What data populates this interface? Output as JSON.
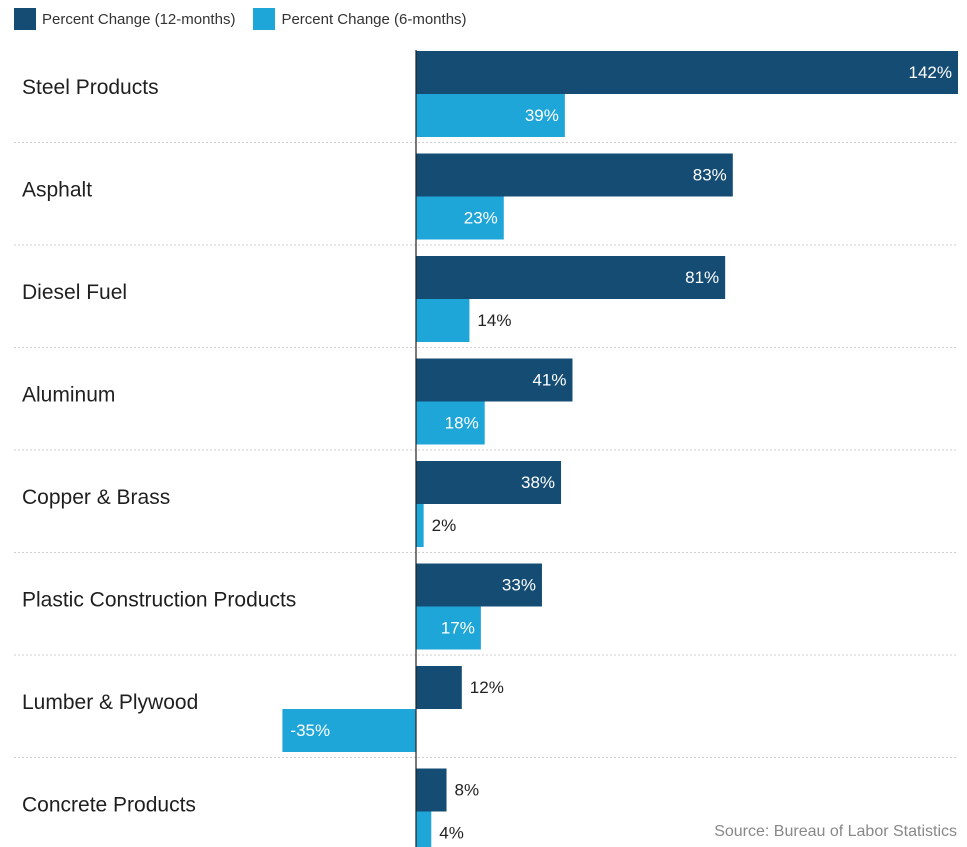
{
  "legend": {
    "series1_label": "Percent Change (12-months)",
    "series2_label": "Percent Change (6-months)"
  },
  "colors": {
    "series1": "#154c74",
    "series2": "#1fa6d8"
  },
  "source": "Source: Bureau of Labor Statistics",
  "chart_data": {
    "type": "bar",
    "orientation": "horizontal",
    "categories": [
      "Steel Products",
      "Asphalt",
      "Diesel Fuel",
      "Aluminum",
      "Copper & Brass",
      "Plastic Construction Products",
      "Lumber & Plywood",
      "Concrete Products"
    ],
    "series": [
      {
        "name": "Percent Change (12-months)",
        "values": [
          142,
          83,
          81,
          41,
          38,
          33,
          12,
          8
        ],
        "labels": [
          "142%",
          "83%",
          "81%",
          "41%",
          "38%",
          "33%",
          "12%",
          "8%"
        ]
      },
      {
        "name": "Percent Change (6-months)",
        "values": [
          39,
          23,
          14,
          18,
          2,
          17,
          -35,
          4
        ],
        "labels": [
          "39%",
          "23%",
          "14%",
          "18%",
          "2%",
          "17%",
          "-35%",
          "4%"
        ]
      }
    ],
    "xlim": [
      -35,
      142
    ],
    "grid": false,
    "legend_position": "top-left"
  }
}
